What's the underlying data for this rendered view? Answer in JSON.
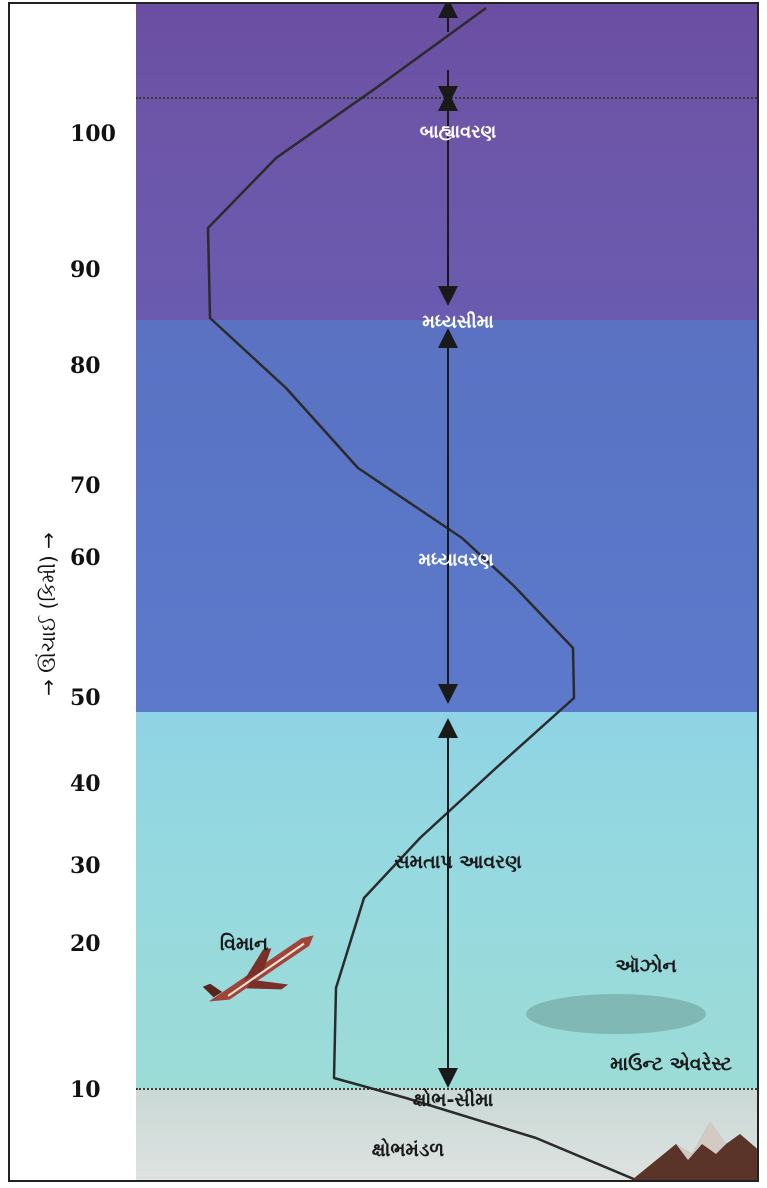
{
  "axis": {
    "label": "→ ઊંચાઈ (કિમી) →",
    "ticks": [
      "100",
      "90",
      "80",
      "70",
      "60",
      "50",
      "40",
      "30",
      "20",
      "10"
    ]
  },
  "layers": {
    "upper": "બાહ્યાવરણ",
    "mesopause": "મધ્યસીમા",
    "mesosphere": "મધ્યાવરણ",
    "stratosphere": "સમતાપ આવરણ",
    "tropopause": "ક્ષોભ-સીમા",
    "troposphere": "ક્ષોભમંડળ"
  },
  "labels": {
    "airplane": "વિમાન",
    "ozone": "ઑઝોન",
    "everest": "માઉન્ટ એવરેસ્ટ"
  },
  "colors": {
    "thermosphere": "#6a4ea1",
    "mesosphere": "#5a76c7",
    "stratosphere": "#96d9df",
    "troposphere": "#dfe3e1",
    "arrow": "#1a1a1a",
    "temperature_line": "#2b2b2b"
  }
}
